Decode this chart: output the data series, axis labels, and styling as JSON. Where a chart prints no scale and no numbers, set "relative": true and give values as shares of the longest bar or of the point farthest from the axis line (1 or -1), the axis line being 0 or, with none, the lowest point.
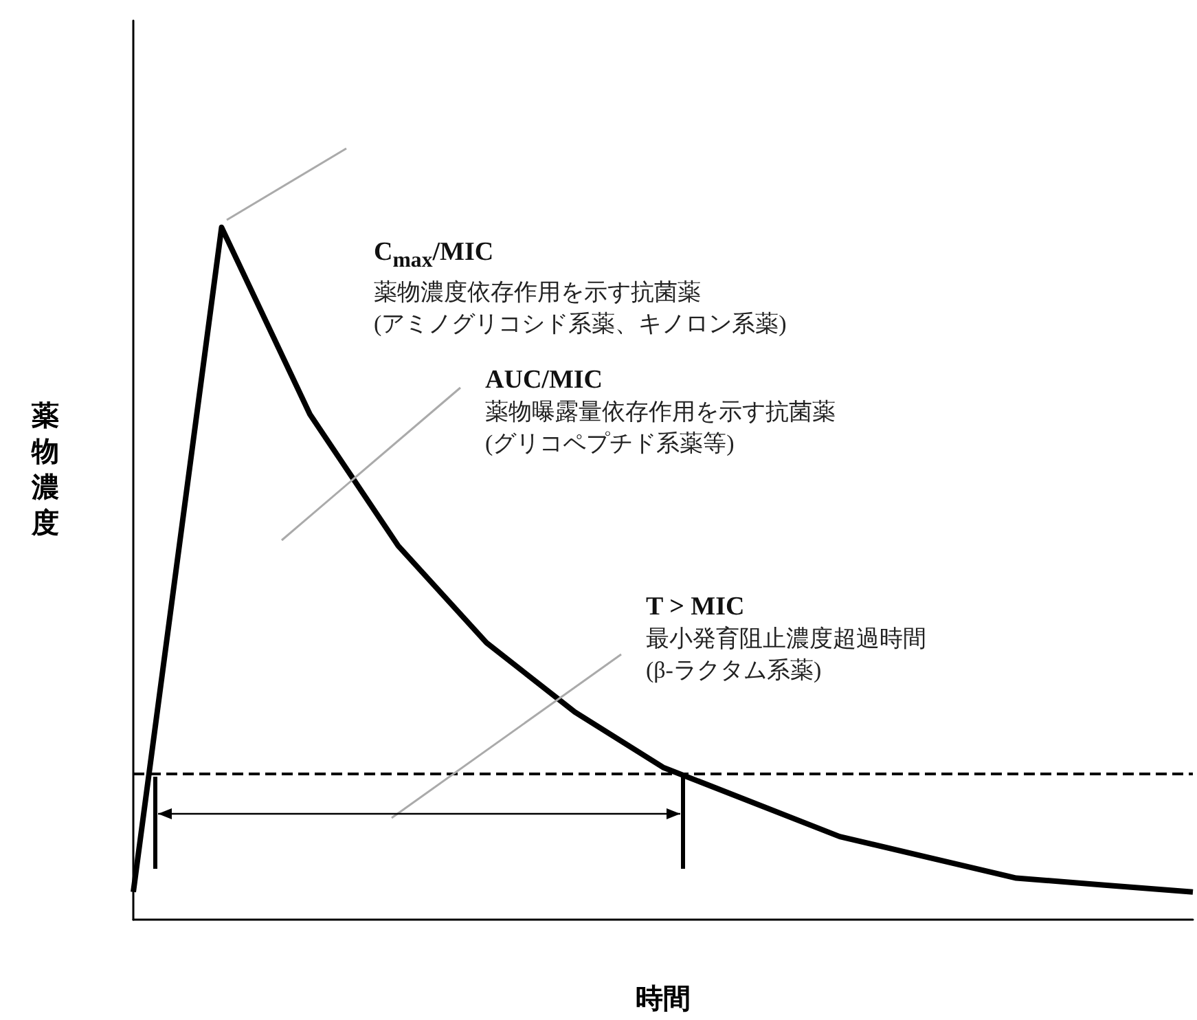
{
  "chart_data": {
    "type": "line",
    "relative": true,
    "xlabel": "時間",
    "ylabel": "薬物濃度",
    "categories": [
      null,
      null,
      null,
      null,
      null,
      null,
      null,
      null,
      null,
      null,
      null,
      null,
      null
    ],
    "series": [
      {
        "color": "#000000",
        "values": [
          0.04,
          1,
          0.73,
          0.54,
          0.4,
          0.3,
          0.22,
          0.17,
          0.12,
          0.09,
          0.06,
          0.05,
          0.04
        ]
      }
    ],
    "ref_lines": [
      {
        "axis": "y",
        "value": 0.21,
        "color": "#000000",
        "line_style": "dashed"
      }
    ],
    "annotations": [
      "C$_{max}$/MIC\n薬物濃度依存作用を示す抗菌薬\n(アミノグリコシド系薬、キノロン系薬)",
      "AUC/MIC\n薬物曝露量依存作用を示す抗菌薬\n(グリコペプチド系薬等)",
      "T > MIC\n最小発育阻止濃度超過時間\n(β-ラクタム系薬)"
    ],
    "marker": "none",
    "line_style": "solid",
    "grid": false
  }
}
